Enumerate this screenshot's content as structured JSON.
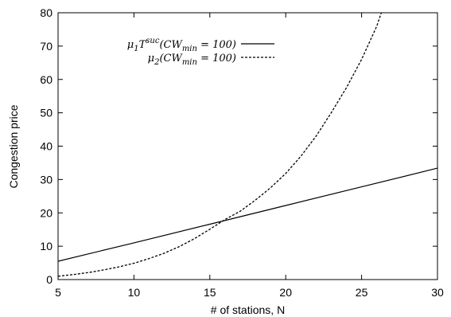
{
  "chart_data": {
    "type": "line",
    "title": "",
    "xlabel": "# of stations, N",
    "ylabel": "Congestion price",
    "xlim": [
      5,
      30
    ],
    "ylim": [
      0,
      80
    ],
    "xticks": [
      5,
      10,
      15,
      20,
      25,
      30
    ],
    "yticks": [
      0,
      10,
      20,
      30,
      40,
      50,
      60,
      70,
      80
    ],
    "grid": false,
    "legend_position": "top-left",
    "series": [
      {
        "name": "μ1T^suc(CW_min = 100)",
        "legend": {
          "base": "μ",
          "sub1": "1",
          "mid": "T",
          "sup": "suc",
          "open": "(CW",
          "sub2": "min",
          "close": " = 100)"
        },
        "style": "solid",
        "x": [
          5,
          10,
          15,
          20,
          25,
          30
        ],
        "y": [
          5.5,
          11.0,
          16.6,
          22.2,
          27.8,
          33.4
        ]
      },
      {
        "name": "μ2(CW_min = 100)",
        "legend": {
          "base": "μ",
          "sub1": "2",
          "mid": "",
          "sup": "",
          "open": "(CW",
          "sub2": "min",
          "close": " = 100)"
        },
        "style": "dashed",
        "x": [
          5,
          6,
          7,
          8,
          9,
          10,
          11,
          12,
          13,
          14,
          15,
          16,
          17,
          18,
          19,
          20,
          21,
          22,
          23,
          24,
          25,
          26,
          26.3
        ],
        "y": [
          1.0,
          1.5,
          2.1,
          2.9,
          3.8,
          4.9,
          6.3,
          7.9,
          9.9,
          12.3,
          15.1,
          18.0,
          20.5,
          23.8,
          27.5,
          31.8,
          37.0,
          43.0,
          50.0,
          57.5,
          66.0,
          76.0,
          80.0
        ]
      }
    ]
  }
}
